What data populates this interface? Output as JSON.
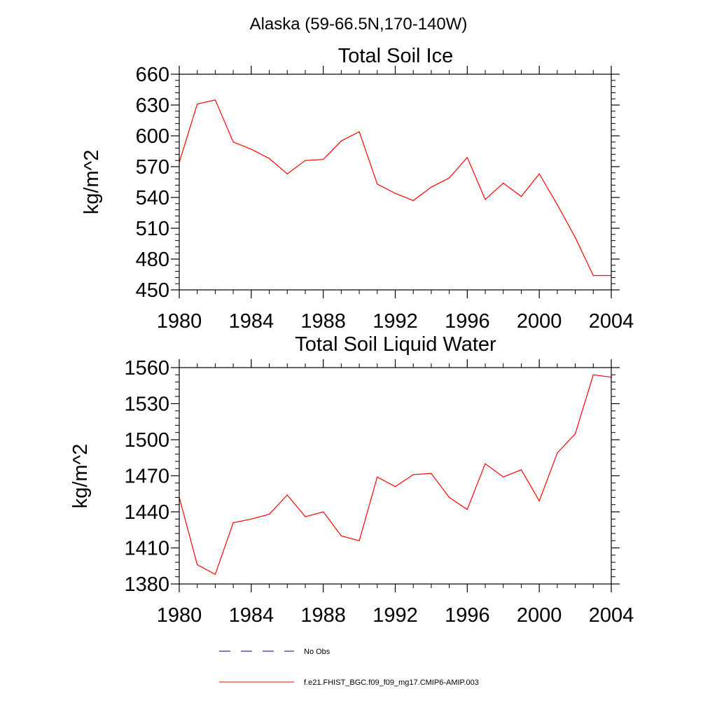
{
  "figure": {
    "title": "Alaska (59-66.5N,170-140W)"
  },
  "colors": {
    "model": "#ff0000",
    "obs": "#000080",
    "axes": "#000000"
  },
  "legend": {
    "entries": [
      {
        "label": "No Obs",
        "style": "dashed",
        "color": "#000080"
      },
      {
        "label": "f.e21.FHIST_BGC.f09_f09_mg17.CMIP6-AMIP.003",
        "style": "solid",
        "color": "#ff0000"
      }
    ]
  },
  "chart_data": [
    {
      "type": "line",
      "title": "Total Soil Ice",
      "xlabel": "",
      "ylabel": "kg/m^2",
      "xlim": [
        1980,
        2004
      ],
      "ylim": [
        450,
        660
      ],
      "xticks": [
        1980,
        1984,
        1988,
        1992,
        1996,
        2000,
        2004
      ],
      "yticks": [
        450,
        480,
        510,
        540,
        570,
        600,
        630,
        660
      ],
      "x": [
        1980,
        1981,
        1982,
        1983,
        1984,
        1985,
        1986,
        1987,
        1988,
        1989,
        1990,
        1991,
        1992,
        1993,
        1994,
        1995,
        1996,
        1997,
        1998,
        1999,
        2000,
        2001,
        2002,
        2003,
        2004
      ],
      "series": [
        {
          "name": "f.e21.FHIST_BGC.f09_f09_mg17.CMIP6-AMIP.003",
          "values": [
            574,
            631,
            635,
            594,
            587,
            578,
            563,
            576,
            577,
            595,
            604,
            553,
            544,
            537,
            550,
            559,
            579,
            538,
            554,
            541,
            563,
            533,
            501,
            464,
            464
          ]
        }
      ]
    },
    {
      "type": "line",
      "title": "Total Soil Liquid Water",
      "xlabel": "",
      "ylabel": "kg/m^2",
      "xlim": [
        1980,
        2004
      ],
      "ylim": [
        1380,
        1560
      ],
      "xticks": [
        1980,
        1984,
        1988,
        1992,
        1996,
        2000,
        2004
      ],
      "yticks": [
        1380,
        1410,
        1440,
        1470,
        1500,
        1530,
        1560
      ],
      "x": [
        1980,
        1981,
        1982,
        1983,
        1984,
        1985,
        1986,
        1987,
        1988,
        1989,
        1990,
        1991,
        1992,
        1993,
        1994,
        1995,
        1996,
        1997,
        1998,
        1999,
        2000,
        2001,
        2002,
        2003,
        2004
      ],
      "series": [
        {
          "name": "f.e21.FHIST_BGC.f09_f09_mg17.CMIP6-AMIP.003",
          "values": [
            1452,
            1396,
            1388,
            1431,
            1434,
            1438,
            1454,
            1436,
            1440,
            1420,
            1416,
            1469,
            1461,
            1471,
            1472,
            1452,
            1442,
            1480,
            1469,
            1475,
            1449,
            1489,
            1505,
            1554,
            1552
          ]
        }
      ]
    }
  ]
}
